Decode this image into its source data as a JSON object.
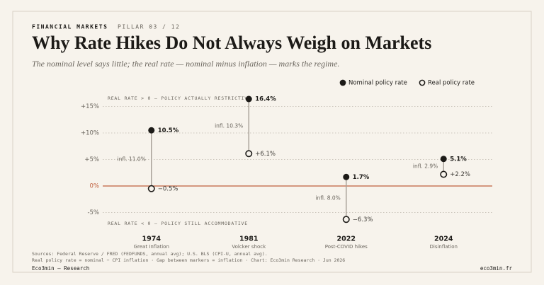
{
  "header": {
    "kicker": "FINANCIAL MARKETS",
    "pillar": "PILLAR 03 / 12"
  },
  "chart_data": {
    "type": "dumbbell",
    "title": "Why Rate Hikes Do Not Always Weigh on Markets",
    "subtitle": "The nominal level says little; the real rate — nominal minus inflation — marks the regime.",
    "annotations": [
      "REAL RATE > 0 — POLICY ACTUALLY RESTRICTIVE",
      "REAL RATE < 0 — POLICY STILL ACCOMMODATIVE"
    ],
    "categories": [
      "1974",
      "1981",
      "2022",
      "2024"
    ],
    "category_notes": [
      "Great Inflation",
      "Volcker shock",
      "Post-COVID hikes",
      "Disinflation"
    ],
    "series": [
      {
        "name": "Nominal policy rate",
        "color": "#1c1a17",
        "values": [
          10.5,
          16.4,
          1.7,
          5.1
        ],
        "value_labels": [
          "10.5%",
          "16.4%",
          "1.7%",
          "5.1%"
        ]
      },
      {
        "name": "Real policy rate",
        "color": "#1c1a17",
        "values": [
          -0.5,
          6.1,
          -6.3,
          2.2
        ],
        "value_labels": [
          "−0.5%",
          "+6.1%",
          "−6.3%",
          "+2.2%"
        ]
      }
    ],
    "inflation": {
      "values": [
        11.0,
        10.3,
        8.0,
        2.9
      ],
      "value_labels": [
        "infl. 11.0%",
        "infl. 10.3%",
        "infl. 8.0%",
        "infl. 2.9%"
      ]
    },
    "ylim": [
      -7.5,
      17
    ],
    "yticks": [
      {
        "value": -5,
        "label": "-5%"
      },
      {
        "value": 0,
        "label": "0%"
      },
      {
        "value": 5,
        "label": "+5%"
      },
      {
        "value": 10,
        "label": "+10%"
      },
      {
        "value": 15,
        "label": "+15%"
      }
    ],
    "grid": true,
    "zero_line_color": "#c0603e",
    "legend": "top-right"
  },
  "footer": {
    "sources": [
      "Sources: Federal Reserve / FRED (FEDFUNDS, annual avg); U.S. BLS (CPI-U, annual avg).",
      "Real policy rate = nominal − CPI inflation · Gap between markers = inflation · Chart: Eco3min Research · Jun 2026"
    ],
    "brand": "Eco3min — Research",
    "site": "eco3min.fr"
  }
}
